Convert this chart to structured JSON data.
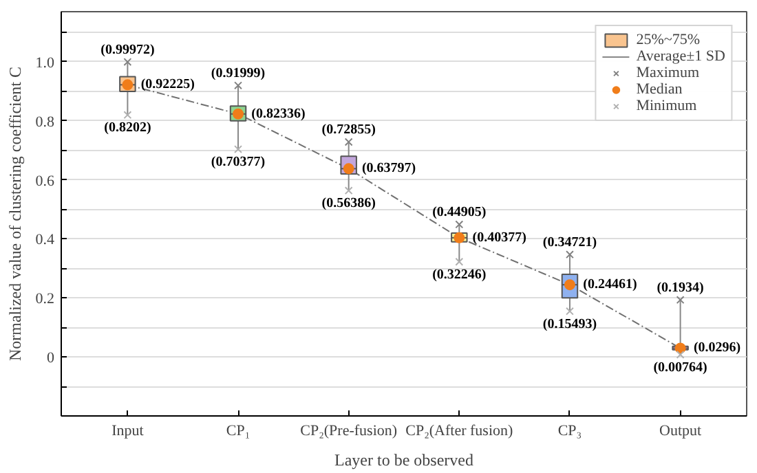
{
  "chart_data": {
    "type": "box",
    "xlabel": "Layer to be observed",
    "ylabel": "Normalized value of clustering coefficient C",
    "categories": [
      "Input",
      "CP₁",
      "CP₂(Pre-fusion)",
      "CP₂(After fusion)",
      "CP₃",
      "Output"
    ],
    "ylim": [
      -0.2,
      1.17
    ],
    "yticks": [
      {
        "value": -0.1,
        "label": null
      },
      0,
      {
        "value": 0.1,
        "label": null
      },
      0.2,
      {
        "value": 0.3,
        "label": null
      },
      0.4,
      {
        "value": 0.5,
        "label": null
      },
      0.6,
      {
        "value": 0.7,
        "label": null
      },
      0.8,
      {
        "value": 0.9,
        "label": null
      },
      {
        "value": 1.0,
        "label": "1.0"
      },
      {
        "value": 1.1,
        "label": null
      }
    ],
    "grid": "y",
    "legend": "top right",
    "series": [
      {
        "name": "25%~75%",
        "colors": [
          "#f9c48f",
          "#8fd48f",
          "#c3a6dc",
          "#f7f49a",
          "#8fb1ef",
          "#f4a6e6"
        ],
        "boxes": [
          {
            "low": 0.8202,
            "q1": 0.9,
            "median": 0.92225,
            "q3": 0.95,
            "high": 0.99972
          },
          {
            "low": 0.70377,
            "q1": 0.8,
            "median": 0.82336,
            "q3": 0.85,
            "high": 0.91999
          },
          {
            "low": 0.56386,
            "q1": 0.62,
            "median": 0.63797,
            "q3": 0.68,
            "high": 0.72855
          },
          {
            "low": 0.32246,
            "q1": 0.39,
            "median": 0.40377,
            "q3": 0.42,
            "high": 0.44905
          },
          {
            "low": 0.15493,
            "q1": 0.2,
            "median": 0.24461,
            "q3": 0.28,
            "high": 0.34721
          },
          {
            "low": 0.00764,
            "q1": 0.024,
            "median": 0.0296,
            "q3": 0.036,
            "high": 0.1934
          }
        ]
      },
      {
        "type": "scatter",
        "name": "Maximum",
        "marker": "cross",
        "color": "#808080",
        "values": [
          0.99972,
          0.91999,
          0.72855,
          0.44905,
          0.34721,
          0.1934
        ]
      },
      {
        "type": "scatter",
        "name": "Median",
        "marker": "circle",
        "color": "#f07d1a",
        "values": [
          0.92225,
          0.82336,
          0.63797,
          0.40377,
          0.24461,
          0.0296
        ]
      },
      {
        "type": "scatter",
        "name": "Minimum",
        "marker": "cross",
        "color": "#b0b0b0",
        "values": [
          0.8202,
          0.70377,
          0.56386,
          0.32246,
          0.15493,
          0.00764
        ]
      },
      {
        "type": "line",
        "color": "#707070",
        "line_style": "dashed",
        "values": [
          0.92225,
          0.82336,
          0.63797,
          0.40377,
          0.24461,
          0.0296
        ]
      }
    ],
    "annotations": [
      "Average±1 SD",
      {
        "text": "(0.99972)",
        "x": "Input",
        "y": 0.99972
      },
      {
        "text": "(0.92225)",
        "x": "Input",
        "y": 0.92225
      },
      {
        "text": "(0.8202)",
        "x": "Input",
        "y": 0.8202
      },
      {
        "text": "(0.91999)",
        "x": "CP₁",
        "y": 0.91999
      },
      {
        "text": "(0.82336)",
        "x": "CP₁",
        "y": 0.82336
      },
      {
        "text": "(0.70377)",
        "x": "CP₁",
        "y": 0.70377
      },
      {
        "text": "(0.72855)",
        "x": "CP₂(Pre-fusion)",
        "y": 0.72855
      },
      {
        "text": "(0.63797)",
        "x": "CP₂(Pre-fusion)",
        "y": 0.63797
      },
      {
        "text": "(0.56386)",
        "x": "CP₂(Pre-fusion)",
        "y": 0.56386
      },
      {
        "text": "(0.44905)",
        "x": "CP₂(After fusion)",
        "y": 0.44905
      },
      {
        "text": "(0.40377)",
        "x": "CP₂(After fusion)",
        "y": 0.40377
      },
      {
        "text": "(0.32246)",
        "x": "CP₂(After fusion)",
        "y": 0.32246
      },
      {
        "text": "(0.34721)",
        "x": "CP₃",
        "y": 0.34721
      },
      {
        "text": "(0.24461)",
        "x": "CP₃",
        "y": 0.24461
      },
      {
        "text": "(0.15493)",
        "x": "CP₃",
        "y": 0.15493
      },
      {
        "text": "(0.1934)",
        "x": "Output",
        "y": 0.1934
      },
      {
        "text": "(0.0296)",
        "x": "Output",
        "y": 0.0296
      },
      {
        "text": "(0.00764)",
        "x": "Output",
        "y": 0.00764
      }
    ]
  }
}
